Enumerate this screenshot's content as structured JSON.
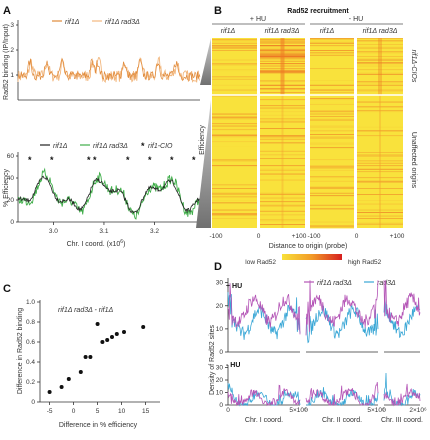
{
  "panels": {
    "A": {
      "label": "A",
      "top": {
        "ylabel": "Rad52 binding (IP/Input)",
        "yticks": [
          "1",
          "2",
          "3"
        ],
        "legend": [
          "rif1Δ",
          "rif1Δ rad3Δ"
        ],
        "colors": {
          "rif1": "#e08a3a",
          "rif1rad3": "#f2b77e"
        }
      },
      "bottom": {
        "ylabel": "% Efficiency",
        "yticks": [
          "0",
          "20",
          "40",
          "60"
        ],
        "xticks": [
          "3.0",
          "3.1",
          "3.2"
        ],
        "xlabel": "Chr. I coord. (x10",
        "xlabel_sup": "6",
        "xlabel_end": ")",
        "legend": [
          "rif1Δ",
          "rif1Δ rad3Δ",
          "rif1-CIO"
        ],
        "colors": {
          "rif1": "#222222",
          "rif1rad3": "#3fae49"
        }
      }
    },
    "B": {
      "label": "B",
      "title": "Rad52 recruitment",
      "conditions": [
        "+ HU",
        "- HU"
      ],
      "genotypes": [
        "rif1Δ",
        "rif1Δ rad3Δ"
      ],
      "side_labels": [
        "rif1Δ-CIOs",
        "Unaffected origins"
      ],
      "ylabel": "Efficiency",
      "xticks": [
        "-100",
        "0",
        "+100"
      ],
      "xlabel": "Distance to origin (probe)",
      "colorbar": [
        "low Rad52",
        "high Rad52"
      ]
    },
    "C": {
      "label": "C",
      "annotation": "rif1Δ rad3Δ - rif1Δ",
      "ylabel": "Difference in Rad52 binding",
      "xlabel": "Difference in % efficiency",
      "xticks": [
        "-5",
        "0",
        "5",
        "10",
        "15"
      ],
      "yticks": [
        "0",
        "0.2",
        "0.4",
        "0.6",
        "0.8",
        "1.0"
      ]
    },
    "D": {
      "label": "D",
      "ylabel": "Density of Rad52 sites",
      "legend": [
        "rif1Δ rad3Δ",
        "rad3Δ"
      ],
      "colors": {
        "rif1rad3": "#b455b6",
        "rad3": "#3aa7d6"
      },
      "conditions": [
        "+ HU",
        "- HU"
      ],
      "yticks_top": [
        "0",
        "10",
        "20",
        "30"
      ],
      "yticks_bottom": [
        "0",
        "10",
        "20",
        "30"
      ],
      "chromosomes": [
        {
          "xlabel": "Chr. I coord.",
          "end_tick": "5×10⁶"
        },
        {
          "xlabel": "Chr. II coord.",
          "end_tick": "5×10⁶"
        },
        {
          "xlabel": "Chr. III coord.",
          "end_tick": "2×10⁶"
        }
      ],
      "zero_tick": "0"
    }
  },
  "chart_data": [
    {
      "type": "scatter",
      "panel": "C",
      "xlabel": "Difference in % efficiency",
      "ylabel": "Difference in Rad52 binding",
      "xlim": [
        -7,
        18
      ],
      "ylim": [
        0,
        1.0
      ],
      "x": [
        -5,
        -2.5,
        -1,
        1.5,
        2.5,
        3.5,
        5,
        6,
        7,
        8,
        9,
        10.5,
        14.5
      ],
      "y": [
        0.1,
        0.15,
        0.23,
        0.3,
        0.45,
        0.45,
        0.78,
        0.6,
        0.62,
        0.65,
        0.68,
        0.7,
        0.75
      ]
    }
  ]
}
